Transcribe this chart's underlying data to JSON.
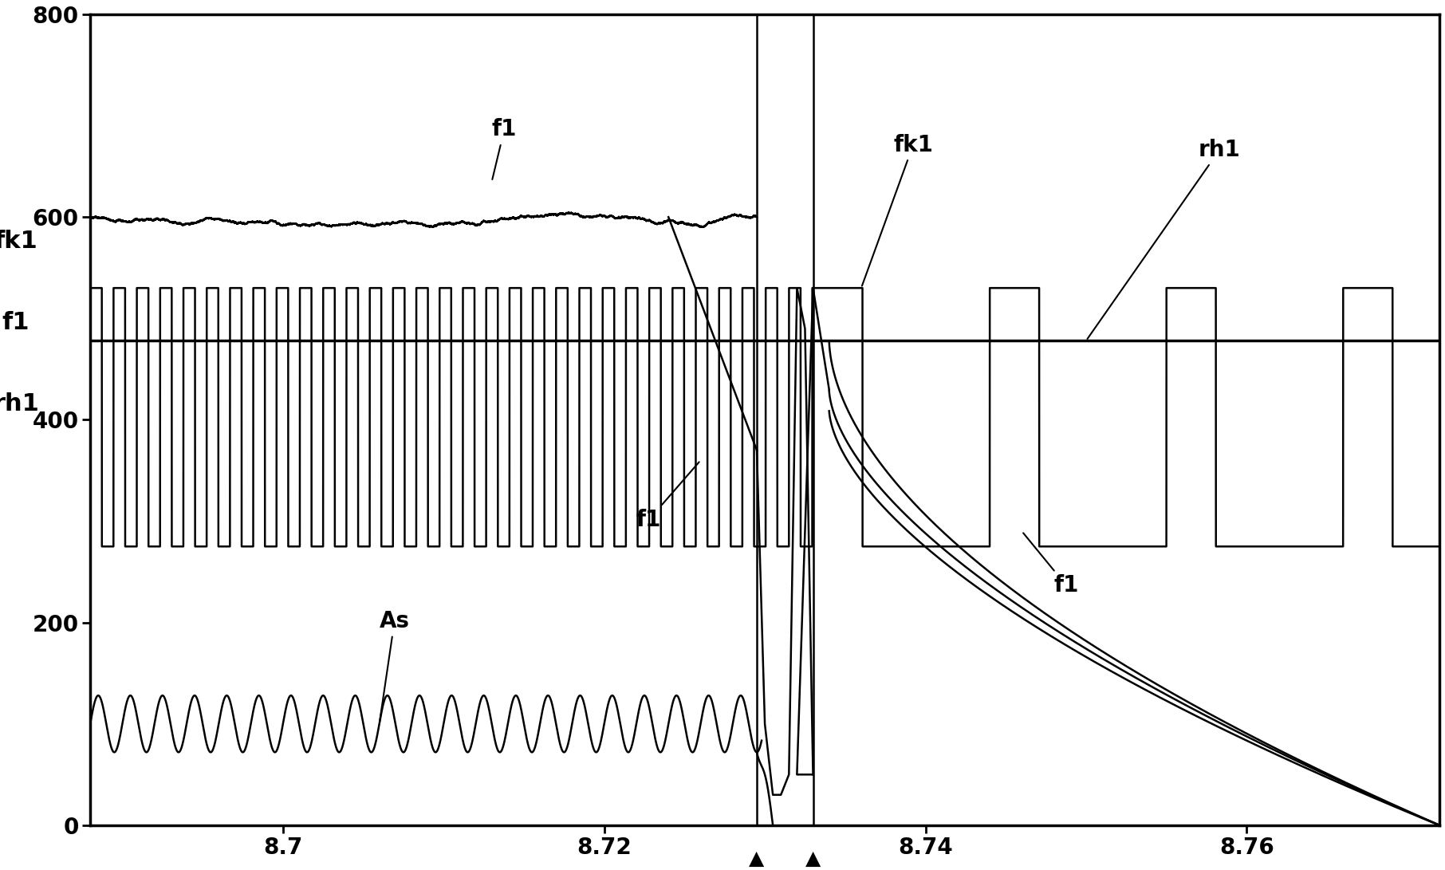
{
  "xlim": [
    8.688,
    8.772
  ],
  "ylim": [
    0,
    800
  ],
  "yticks": [
    0,
    200,
    400,
    600,
    800
  ],
  "xticks": [
    8.7,
    8.72,
    8.74,
    8.76
  ],
  "xtick_labels": [
    "8.7",
    "8.72",
    "8.74",
    "8.76"
  ],
  "ylabel_left": "fk1\nf1\nrh1",
  "vline1_x": 8.7295,
  "vline2_x": 8.733,
  "f1_base": 600,
  "f1_noise_amp": 10,
  "As_base": 100,
  "As_amp": 28,
  "As_freq": 500,
  "sq_low": 275,
  "sq_high": 530,
  "sq_period_dense": 0.00145,
  "sq_period_sparse": 0.011,
  "sq_duty_sparse": 0.28,
  "rh1_level": 478,
  "background": "#ffffff",
  "line_color": "#000000",
  "lw_main": 1.8,
  "lw_rh1": 2.5,
  "lw_vline": 1.8
}
